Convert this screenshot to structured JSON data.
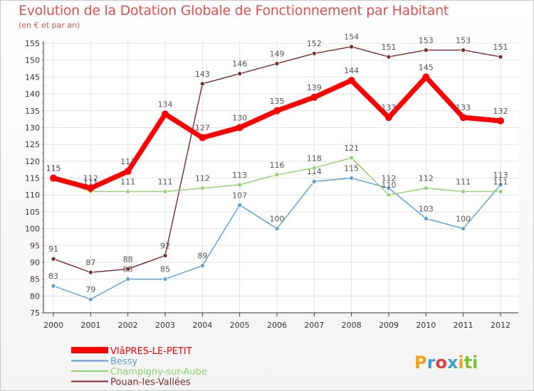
{
  "logo": {
    "p1": "P",
    "p2": "r",
    "p3": "o",
    "p4": "x",
    "p5": "i",
    "p6": "ti"
  },
  "chart_data": {
    "type": "line",
    "title": "Evolution de la Dotation Globale de Fonctionnement par Habitant",
    "subtitle": "(en € et par an)",
    "xlabel": "",
    "ylabel": "",
    "x": [
      "2000",
      "2001",
      "2002",
      "2003",
      "2004",
      "2005",
      "2006",
      "2007",
      "2008",
      "2009",
      "2010",
      "2011",
      "2012"
    ],
    "ylim": [
      75,
      155
    ],
    "yticks": [
      75,
      80,
      85,
      90,
      95,
      100,
      105,
      110,
      115,
      120,
      125,
      130,
      135,
      140,
      145,
      150,
      155
    ],
    "grid": true,
    "legend_position": "bottom-left",
    "series": [
      {
        "name": "VIâPRES-LE-PETIT",
        "color": "#ff0000",
        "values": [
          115,
          112,
          117,
          134,
          127,
          130,
          135,
          139,
          144,
          133,
          145,
          133,
          132
        ]
      },
      {
        "name": "Bessy",
        "color": "#5a9fd4",
        "values": [
          83,
          79,
          85,
          85,
          89,
          107,
          100,
          114,
          115,
          112,
          103,
          100,
          113
        ]
      },
      {
        "name": "Champigny-sur-Aube",
        "color": "#8fd16b",
        "values": [
          115,
          111,
          111,
          111,
          112,
          113,
          116,
          118,
          121,
          110,
          112,
          111,
          111
        ]
      },
      {
        "name": "Pouan-les-Vallées",
        "color": "#7a2a2a",
        "values": [
          91,
          87,
          88,
          92,
          143,
          146,
          149,
          152,
          154,
          151,
          153,
          153,
          151
        ]
      }
    ]
  }
}
